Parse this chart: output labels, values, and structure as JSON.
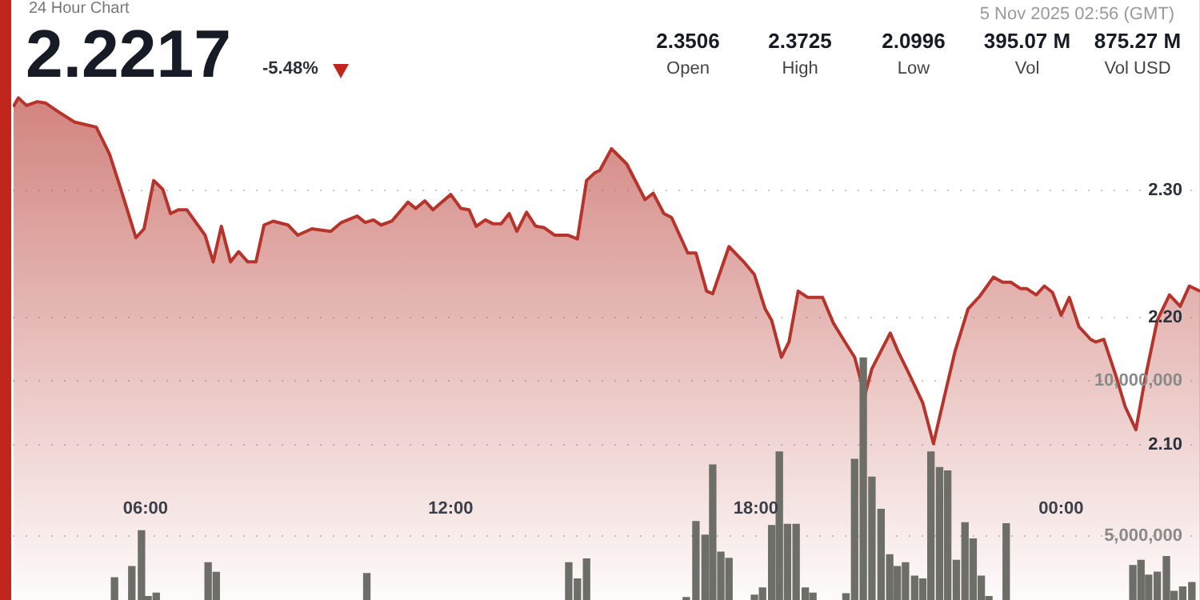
{
  "chart_data": {
    "type": "area",
    "title": "24 Hour Chart",
    "subtitle": "5 Nov 2025 02:56 (GMT)",
    "annotations": [
      "2.2217",
      "-5.48%",
      "2.3506",
      "Open",
      "2.3725",
      "High",
      "2.0996",
      "Low",
      "395.07 M",
      "Vol",
      "875.27 M",
      "Vol USD"
    ],
    "xlim": [
      3.39,
      26.73
    ],
    "xticks": [
      {
        "value": 6,
        "label": "06:00"
      },
      {
        "value": 12,
        "label": "12:00"
      },
      {
        "value": 18,
        "label": "18:00"
      },
      {
        "value": 24,
        "label": "00:00"
      }
    ],
    "ylim": [
      1.978,
      2.45
    ],
    "yticks": [
      {
        "value": 2.1,
        "label": "2.10"
      },
      {
        "value": 2.2,
        "label": "2.20"
      },
      {
        "value": 2.3,
        "label": "2.30"
      }
    ],
    "y2lim": [
      2940000,
      22270000
    ],
    "y2ticks": [
      {
        "value": 5000000,
        "label": "5,000,000"
      },
      {
        "value": 10000000,
        "label": "10,000,000"
      }
    ],
    "grid": "y",
    "legend": false,
    "marker": "none",
    "series": [
      {
        "color": "#b5342b",
        "x": [
          3.4,
          3.5,
          3.66,
          3.87,
          4.03,
          4.29,
          4.6,
          5.03,
          5.29,
          5.5,
          5.81,
          5.97,
          6.16,
          6.34,
          6.49,
          6.65,
          6.81,
          7.17,
          7.33,
          7.49,
          7.67,
          7.83,
          8.01,
          8.17,
          8.33,
          8.51,
          8.8,
          8.99,
          9.27,
          9.64,
          9.85,
          10.16,
          10.32,
          10.48,
          10.63,
          10.84,
          11.16,
          11.31,
          11.49,
          11.65,
          12.0,
          12.2,
          12.36,
          12.5,
          12.68,
          12.83,
          12.99,
          13.15,
          13.3,
          13.49,
          13.67,
          13.83,
          14.04,
          14.3,
          14.49,
          14.67,
          14.83,
          14.93,
          15.16,
          15.46,
          15.82,
          15.98,
          16.19,
          16.34,
          16.66,
          16.82,
          17.03,
          17.15,
          17.47,
          17.76,
          17.97,
          18.18,
          18.31,
          18.5,
          18.65,
          18.83,
          19.02,
          19.31,
          19.52,
          19.75,
          19.94,
          20.14,
          20.28,
          20.64,
          20.8,
          21.01,
          21.28,
          21.49,
          21.64,
          21.91,
          22.17,
          22.4,
          22.67,
          22.85,
          23.01,
          23.2,
          23.32,
          23.51,
          23.67,
          23.83,
          24.0,
          24.16,
          24.35,
          24.58,
          24.68,
          24.84,
          25.08,
          25.26,
          25.47,
          25.65,
          25.89,
          26.13,
          26.34,
          26.52,
          26.73
        ],
        "values": [
          2.366,
          2.373,
          2.367,
          2.37,
          2.369,
          2.362,
          2.354,
          2.35,
          2.329,
          2.303,
          2.263,
          2.27,
          2.308,
          2.301,
          2.282,
          2.285,
          2.285,
          2.265,
          2.244,
          2.272,
          2.244,
          2.252,
          2.244,
          2.244,
          2.273,
          2.276,
          2.273,
          2.265,
          2.27,
          2.268,
          2.275,
          2.28,
          2.275,
          2.277,
          2.273,
          2.276,
          2.291,
          2.286,
          2.292,
          2.285,
          2.297,
          2.286,
          2.285,
          2.272,
          2.277,
          2.274,
          2.274,
          2.282,
          2.268,
          2.283,
          2.272,
          2.271,
          2.265,
          2.265,
          2.262,
          2.308,
          2.314,
          2.316,
          2.333,
          2.321,
          2.293,
          2.298,
          2.282,
          2.279,
          2.251,
          2.251,
          2.221,
          2.219,
          2.256,
          2.244,
          2.234,
          2.207,
          2.198,
          2.169,
          2.181,
          2.221,
          2.216,
          2.216,
          2.196,
          2.181,
          2.169,
          2.139,
          2.16,
          2.188,
          2.173,
          2.156,
          2.133,
          2.101,
          2.127,
          2.173,
          2.207,
          2.217,
          2.232,
          2.228,
          2.228,
          2.223,
          2.223,
          2.218,
          2.225,
          2.22,
          2.202,
          2.216,
          2.193,
          2.183,
          2.181,
          2.183,
          2.154,
          2.13,
          2.112,
          2.152,
          2.198,
          2.218,
          2.209,
          2.225,
          2.221
        ]
      },
      {
        "type": "bar",
        "axis": "y2",
        "color": "#6e6e68",
        "x": [
          5.39,
          5.73,
          5.92,
          6.05,
          6.21,
          7.23,
          7.39,
          10.35,
          14.32,
          14.49,
          14.67,
          16.63,
          16.82,
          17.0,
          17.15,
          17.31,
          17.47,
          17.97,
          18.13,
          18.31,
          18.46,
          18.62,
          18.79,
          18.97,
          19.12,
          19.77,
          19.94,
          20.11,
          20.28,
          20.46,
          20.63,
          20.78,
          20.94,
          21.12,
          21.28,
          21.44,
          21.61,
          21.77,
          21.94,
          22.11,
          22.27,
          22.43,
          22.58,
          22.92,
          25.41,
          25.57,
          25.72,
          25.89,
          26.07,
          26.22,
          26.39,
          26.57
        ],
        "values": [
          3660000,
          4020000,
          5170000,
          3050000,
          3160000,
          4140000,
          3830000,
          3790000,
          4140000,
          3620000,
          4260000,
          3020000,
          5470000,
          5030000,
          7290000,
          4480000,
          4280000,
          3100000,
          3330000,
          5340000,
          7710000,
          5380000,
          5380000,
          3330000,
          3160000,
          3140000,
          7470000,
          10740000,
          6900000,
          5860000,
          4400000,
          4020000,
          4140000,
          3710000,
          3620000,
          7710000,
          7210000,
          7100000,
          4220000,
          5430000,
          4910000,
          3710000,
          3050000,
          5400000,
          4050000,
          4220000,
          3740000,
          3840000,
          4340000,
          3220000,
          3360000,
          3500000
        ]
      }
    ]
  }
}
